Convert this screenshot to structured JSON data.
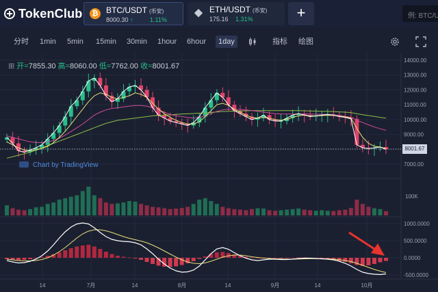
{
  "app": {
    "logo_text": "TokenClub"
  },
  "pairs": [
    {
      "name": "BTC/USDT",
      "tag": "(币安)",
      "price": "8000.30",
      "arrow": "↑",
      "change": "1.11%",
      "icon": "bitcoin-icon",
      "active": true
    },
    {
      "name": "ETH/USDT",
      "tag": "(币安)",
      "price": "175.16",
      "arrow": "",
      "change": "1.31%",
      "icon": "ethereum-icon",
      "active": false
    }
  ],
  "add_label": "+",
  "search": {
    "placeholder": "例: BTC/USDT"
  },
  "toolbar": {
    "timeframes": [
      "分时",
      "1min",
      "5min",
      "15min",
      "30min",
      "1hour",
      "6hour",
      "1day"
    ],
    "selected": "1day",
    "indicator_label": "指标",
    "draw_label": "绘图"
  },
  "ohlc": {
    "open_label": "开=",
    "open": "7855.30",
    "high_label": "高=",
    "high": "8060.00",
    "low_label": "低=",
    "low": "7762.00",
    "close_label": "收=",
    "close": "8001.67"
  },
  "watermark": "Chart by TradingView",
  "last_price": "8001.67",
  "colors": {
    "up": "#27c08b",
    "down": "#e3426a",
    "ma_white": "#ffffff",
    "ma_yellow": "#e9e07a",
    "ma_pink": "#d04b9c",
    "ma_green": "#8fc14a",
    "accent": "#4f8be0"
  },
  "chart_data": {
    "type": "candlestick",
    "price_axis": [
      "14000.00",
      "13000.00",
      "12000.00",
      "11000.00",
      "10000.00",
      "9000.00",
      "8000.00",
      "7000.00"
    ],
    "volume_axis": [
      "100K"
    ],
    "macd_axis": [
      "1000.0000",
      "500.0000",
      "0.0000",
      "-500.0000"
    ],
    "x_labels": [
      "14",
      "7月",
      "14",
      "8月",
      "14",
      "9月",
      "14",
      "10月"
    ],
    "close_series": [
      8800,
      8400,
      7900,
      7800,
      7950,
      8100,
      8300,
      8700,
      9100,
      9600,
      10200,
      10900,
      11300,
      11900,
      12600,
      12800,
      12300,
      11600,
      11200,
      11400,
      11900,
      12200,
      12300,
      12000,
      11500,
      10800,
      10300,
      10100,
      9900,
      9800,
      9700,
      9600,
      9800,
      10200,
      10800,
      11300,
      11800,
      11500,
      11000,
      10600,
      10400,
      10200,
      10000,
      10100,
      10300,
      10000,
      9900,
      9900,
      10100,
      10300,
      10400,
      10300,
      10200,
      10250,
      10300,
      10350,
      10300,
      10200,
      10150,
      10050,
      8300,
      8100,
      8050,
      8100,
      8150,
      8000
    ],
    "ma_yellow": [
      8500,
      8300,
      8100,
      7950,
      7900,
      7950,
      8050,
      8200,
      8450,
      8800,
      9200,
      9700,
      10200,
      10700,
      11200,
      11600,
      11800,
      11700,
      11500,
      11400,
      11500,
      11600,
      11800,
      11700,
      11500,
      11100,
      10700,
      10400,
      10150,
      9950,
      9800,
      9700,
      9700,
      9850,
      10200,
      10600,
      11000,
      11100,
      10950,
      10700,
      10500,
      10300,
      10150,
      10100,
      10150,
      10100,
      10000,
      9950,
      10000,
      10150,
      10250,
      10300,
      10250,
      10250,
      10270,
      10290,
      10280,
      10230,
      10180,
      10100,
      9400,
      8800,
      8400,
      8200,
      8150,
      8050
    ],
    "ma_pink": [
      8900,
      8800,
      8700,
      8600,
      8500,
      8450,
      8450,
      8500,
      8600,
      8750,
      8950,
      9200,
      9450,
      9700,
      10000,
      10300,
      10500,
      10650,
      10750,
      10800,
      10850,
      10900,
      10950,
      10950,
      10900,
      10800,
      10650,
      10500,
      10350,
      10250,
      10200,
      10150,
      10100,
      10150,
      10250,
      10400,
      10550,
      10650,
      10700,
      10700,
      10680,
      10650,
      10600,
      10550,
      10500,
      10450,
      10400,
      10380,
      10370,
      10370,
      10380,
      10380,
      10370,
      10360,
      10350,
      10340,
      10320,
      10280,
      10220,
      10150,
      9950,
      9800,
      9650,
      9500,
      9380,
      9280
    ],
    "ma_green": [
      7400,
      7500,
      7600,
      7700,
      7800,
      7950,
      8100,
      8250,
      8400,
      8550,
      8700,
      8850,
      9000,
      9150,
      9300,
      9450,
      9600,
      9750,
      9850,
      9950,
      10000,
      10050,
      10100,
      10150,
      10200,
      10250,
      10280,
      10300,
      10320,
      10350,
      10370,
      10390,
      10410,
      10430,
      10450,
      10480,
      10510,
      10540,
      10560,
      10570,
      10580,
      10590,
      10600,
      10600,
      10600,
      10600,
      10600,
      10600,
      10600,
      10600,
      10600,
      10590,
      10580,
      10570,
      10560,
      10550,
      10540,
      10520,
      10500,
      10470,
      10400,
      10330,
      10270,
      10210,
      10150,
      10100
    ],
    "macd_hist": [
      -40,
      -60,
      -70,
      -60,
      -40,
      -10,
      20,
      60,
      110,
      160,
      220,
      280,
      330,
      360,
      380,
      330,
      260,
      180,
      110,
      60,
      30,
      10,
      -20,
      -60,
      -120,
      -180,
      -230,
      -260,
      -270,
      -250,
      -210,
      -160,
      -100,
      -30,
      40,
      110,
      160,
      170,
      140,
      100,
      60,
      30,
      10,
      0,
      10,
      0,
      -10,
      -20,
      -10,
      0,
      10,
      10,
      0,
      -10,
      -20,
      -40,
      -60,
      -90,
      -120,
      -160,
      -210,
      -240,
      -220,
      -180,
      -130,
      -90
    ],
    "macd_line": [
      -80,
      -120,
      -150,
      -140,
      -100,
      -40,
      60,
      200,
      380,
      580,
      760,
      900,
      990,
      1020,
      990,
      880,
      740,
      620,
      540,
      500,
      480,
      470,
      440,
      380,
      260,
      120,
      -40,
      -180,
      -300,
      -380,
      -420,
      -410,
      -360,
      -240,
      -60,
      120,
      260,
      300,
      250,
      150,
      60,
      -10,
      -60,
      -80,
      -60,
      -40,
      -40,
      -50,
      -50,
      -40,
      -20,
      -10,
      -10,
      -20,
      -30,
      -40,
      -60,
      -100,
      -160,
      -240,
      -340,
      -420,
      -460,
      -480,
      -490,
      -470
    ],
    "signal_line": [
      -40,
      -60,
      -80,
      -90,
      -90,
      -80,
      -50,
      0,
      80,
      180,
      300,
      440,
      580,
      700,
      780,
      820,
      820,
      790,
      740,
      680,
      620,
      570,
      530,
      490,
      440,
      370,
      290,
      200,
      110,
      20,
      -60,
      -120,
      -160,
      -170,
      -150,
      -100,
      -40,
      20,
      60,
      80,
      80,
      60,
      30,
      10,
      -10,
      -20,
      -30,
      -35,
      -40,
      -40,
      -35,
      -30,
      -25,
      -25,
      -25,
      -30,
      -40,
      -55,
      -80,
      -110,
      -160,
      -220,
      -280,
      -340,
      -390,
      -430
    ],
    "volume": [
      35,
      25,
      20,
      18,
      22,
      28,
      30,
      40,
      45,
      55,
      60,
      65,
      70,
      85,
      100,
      70,
      60,
      45,
      40,
      42,
      45,
      50,
      48,
      40,
      35,
      30,
      28,
      25,
      22,
      24,
      26,
      30,
      40,
      55,
      60,
      50,
      40,
      30,
      25,
      22,
      20,
      18,
      22,
      25,
      24,
      18,
      16,
      18,
      20,
      22,
      24,
      20,
      18,
      16,
      18,
      16,
      15,
      18,
      20,
      26,
      55,
      40,
      30,
      25,
      22,
      15
    ]
  }
}
